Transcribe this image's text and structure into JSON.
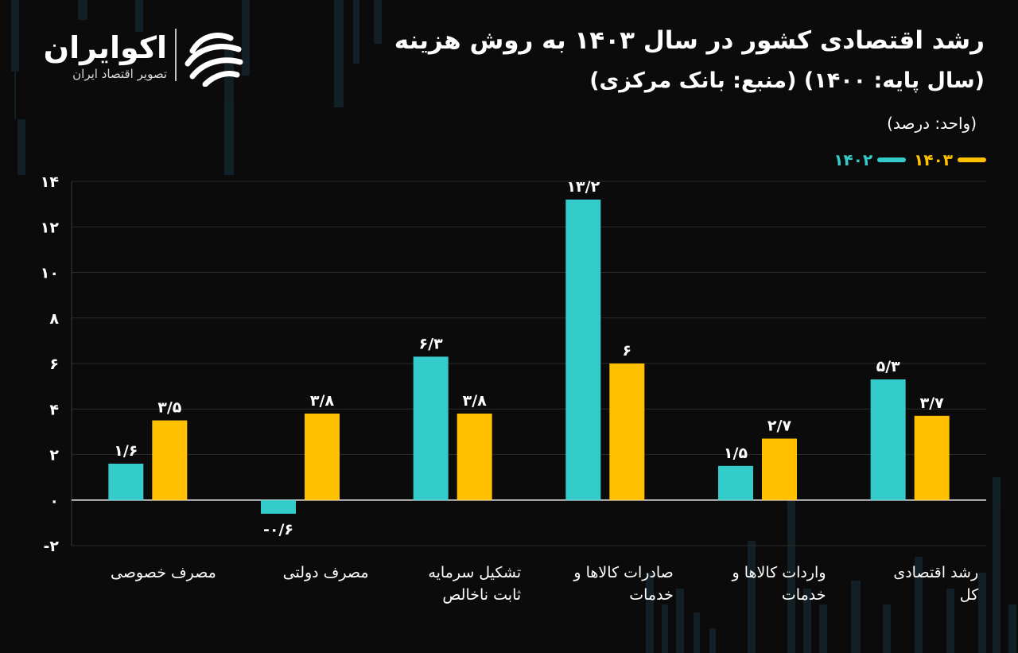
{
  "brand": {
    "name": "اکوایران",
    "tagline": "تصویر اقتصاد ایران",
    "logo_icon": "ecoiran-swoosh-icon"
  },
  "header": {
    "title": "رشد اقتصادی کشور در سال ۱۴۰۳ به روش هزینه",
    "subtitle": "(سال پایه: ۱۴۰۰) (منبع: بانک مرکزی)",
    "unit": "(واحد: درصد)"
  },
  "legend": [
    {
      "label": "۱۴۰۳",
      "color": "#ffc000"
    },
    {
      "label": "۱۴۰۲",
      "color": "#34cbcb"
    }
  ],
  "chart_data": {
    "type": "bar",
    "categories": [
      [
        "مصرف خصوصی"
      ],
      [
        "مصرف دولتی"
      ],
      [
        "تشکیل سرمایه",
        "ثابت ناخالص"
      ],
      [
        "صادرات کالاها و",
        "خدمات"
      ],
      [
        "واردات کالاها و",
        "خدمات"
      ],
      [
        "رشد اقتصادی",
        "کل"
      ]
    ],
    "series": [
      {
        "name": "۱۴۰۲",
        "color": "#34cbcb",
        "values": [
          1.6,
          -0.6,
          6.3,
          13.2,
          1.5,
          5.3
        ],
        "labels": [
          "۱/۶",
          "-۰/۶",
          "۶/۳",
          "۱۳/۲",
          "۱/۵",
          "۵/۳"
        ]
      },
      {
        "name": "۱۴۰۳",
        "color": "#ffc000",
        "values": [
          3.5,
          3.8,
          3.8,
          6,
          2.7,
          3.7
        ],
        "labels": [
          "۳/۵",
          "۳/۸",
          "۳/۸",
          "۶",
          "۲/۷",
          "۳/۷"
        ]
      }
    ],
    "ylim": [
      -2,
      14
    ],
    "yticks": [
      14,
      12,
      10,
      8,
      6,
      4,
      2,
      0,
      -2
    ],
    "ytick_labels": [
      "۱۴",
      "۱۲",
      "۱۰",
      "۸",
      "۶",
      "۴",
      "۲",
      "۰",
      "-۲"
    ],
    "grid": true,
    "legend_position": "top-right"
  }
}
